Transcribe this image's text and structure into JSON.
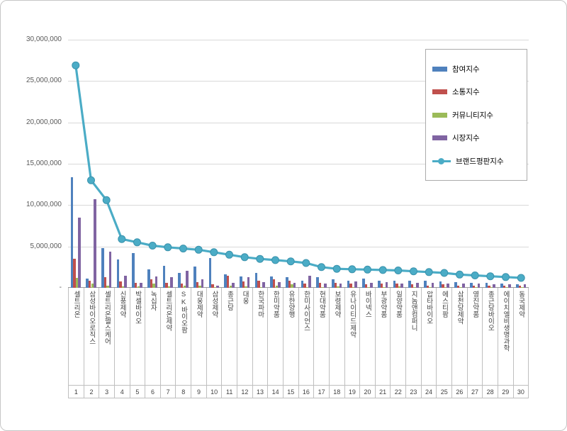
{
  "window": {
    "background": "#ffffff",
    "border_color": "#c6c6c6"
  },
  "legend": {
    "position": "inside top-right",
    "items": [
      {
        "key": "participation",
        "label": "참여지수",
        "type": "bar",
        "color": "#4F81BD"
      },
      {
        "key": "communication",
        "label": "소통지수",
        "type": "bar",
        "color": "#C0504D"
      },
      {
        "key": "community",
        "label": "커뮤니티지수",
        "type": "bar",
        "color": "#9BBB59"
      },
      {
        "key": "market",
        "label": "시장지수",
        "type": "bar",
        "color": "#8064A2"
      },
      {
        "key": "brand",
        "label": "브랜드평판지수",
        "type": "line",
        "color": "#4BACC6"
      }
    ]
  },
  "chart_data": {
    "type": "bar",
    "combo": "grouped bars with line overlay",
    "grid": true,
    "legend_position": "inside top-right",
    "categories": [
      "셀트리온",
      "삼성바이오로직스",
      "셀트리온헬스케어",
      "신풍제약",
      "박셀바이오",
      "녹십자",
      "셀트리온제약",
      "SK바이오팜",
      "대웅제약",
      "삼성제약",
      "종근당",
      "대웅",
      "한국파마",
      "한미약품",
      "유한양행",
      "한미사이언스",
      "현대약품",
      "보령제약",
      "유나이티드제약",
      "바이넥스",
      "부광약품",
      "일양약품",
      "지놈앤컴퍼니",
      "압타바이오",
      "에스티팜",
      "삼천당제약",
      "영진약품",
      "종근당바이오",
      "에이치엘비생명과학",
      "동국제약"
    ],
    "ranks": [
      "1",
      "2",
      "3",
      "4",
      "5",
      "6",
      "7",
      "8",
      "9",
      "10",
      "11",
      "12",
      "13",
      "14",
      "15",
      "16",
      "17",
      "18",
      "19",
      "20",
      "21",
      "22",
      "23",
      "24",
      "25",
      "26",
      "27",
      "28",
      "29",
      "30"
    ],
    "series": [
      {
        "key": "participation",
        "name": "참여지수",
        "type": "bar",
        "color": "#4F81BD",
        "values": [
          13400000,
          1100000,
          4800000,
          3400000,
          4200000,
          2200000,
          2700000,
          1800000,
          2600000,
          3600000,
          1600000,
          1400000,
          1800000,
          1400000,
          1300000,
          900000,
          1300000,
          1000000,
          900000,
          1100000,
          900000,
          900000,
          900000,
          900000,
          800000,
          700000,
          600000,
          600000,
          500000,
          400000
        ]
      },
      {
        "key": "communication",
        "name": "소통지수",
        "type": "bar",
        "color": "#C0504D",
        "values": [
          3500000,
          900000,
          1300000,
          800000,
          600000,
          1000000,
          600000,
          500000,
          700000,
          400000,
          1500000,
          800000,
          900000,
          1000000,
          900000,
          500000,
          600000,
          600000,
          500000,
          400000,
          500000,
          500000,
          400000,
          300000,
          400000,
          300000,
          300000,
          300000,
          300000,
          300000
        ]
      },
      {
        "key": "community",
        "name": "커뮤니티지수",
        "type": "bar",
        "color": "#9BBB59",
        "values": [
          1200000,
          500000,
          300000,
          200000,
          150000,
          500000,
          200000,
          300000,
          300000,
          100000,
          300000,
          200000,
          100000,
          300000,
          400000,
          100000,
          100000,
          200000,
          100000,
          100000,
          100000,
          200000,
          100000,
          100000,
          100000,
          100000,
          100000,
          100000,
          100000,
          100000
        ]
      },
      {
        "key": "market",
        "name": "시장지수",
        "type": "bar",
        "color": "#8064A2",
        "values": [
          8500000,
          10700000,
          4400000,
          1500000,
          600000,
          1400000,
          1300000,
          2100000,
          1000000,
          300000,
          600000,
          1300000,
          700000,
          700000,
          600000,
          1500000,
          500000,
          500000,
          750000,
          600000,
          650000,
          500000,
          600000,
          600000,
          500000,
          500000,
          500000,
          400000,
          400000,
          400000
        ]
      },
      {
        "key": "brand",
        "name": "브랜드평판지수",
        "type": "line",
        "color": "#4BACC6",
        "values": [
          26900000,
          13000000,
          10600000,
          5900000,
          5500000,
          5100000,
          4900000,
          4750000,
          4600000,
          4300000,
          4000000,
          3700000,
          3500000,
          3350000,
          3200000,
          3000000,
          2500000,
          2300000,
          2250000,
          2200000,
          2150000,
          2100000,
          2000000,
          1900000,
          1800000,
          1600000,
          1500000,
          1400000,
          1300000,
          1200000
        ]
      }
    ],
    "y_axis": {
      "min": 0,
      "max": 30000000,
      "tick_interval": 5000000,
      "tick_labels": [
        "-",
        "5,000,000",
        "10,000,000",
        "15,000,000",
        "20,000,000",
        "25,000,000",
        "30,000,000"
      ]
    }
  }
}
